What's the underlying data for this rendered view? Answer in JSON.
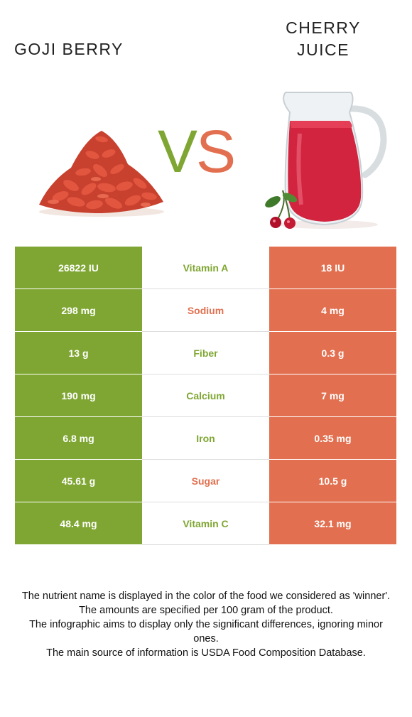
{
  "left_food": {
    "name": "GOJI BERRY",
    "color": "#7fa632"
  },
  "right_food": {
    "name_line1": "CHERRY",
    "name_line2": "JUICE",
    "color": "#e27050"
  },
  "vs": {
    "v": "V",
    "s": "S"
  },
  "rows": [
    {
      "left": "26822 IU",
      "nutrient": "Vitamin A",
      "right": "18 IU",
      "winner": "left"
    },
    {
      "left": "298 mg",
      "nutrient": "Sodium",
      "right": "4 mg",
      "winner": "right"
    },
    {
      "left": "13 g",
      "nutrient": "Fiber",
      "right": "0.3 g",
      "winner": "left"
    },
    {
      "left": "190 mg",
      "nutrient": "Calcium",
      "right": "7 mg",
      "winner": "left"
    },
    {
      "left": "6.8 mg",
      "nutrient": "Iron",
      "right": "0.35 mg",
      "winner": "left"
    },
    {
      "left": "45.61 g",
      "nutrient": "Sugar",
      "right": "10.5 g",
      "winner": "right"
    },
    {
      "left": "48.4 mg",
      "nutrient": "Vitamin C",
      "right": "32.1 mg",
      "winner": "left"
    }
  ],
  "footer": {
    "line1": "The nutrient name is displayed in the color of the food we considered as 'winner'.",
    "line2": "The amounts are specified per 100 gram of the product.",
    "line3": "The infographic aims to display only the significant differences, ignoring minor ones.",
    "line4": "The main source of information is USDA Food Composition Database."
  }
}
